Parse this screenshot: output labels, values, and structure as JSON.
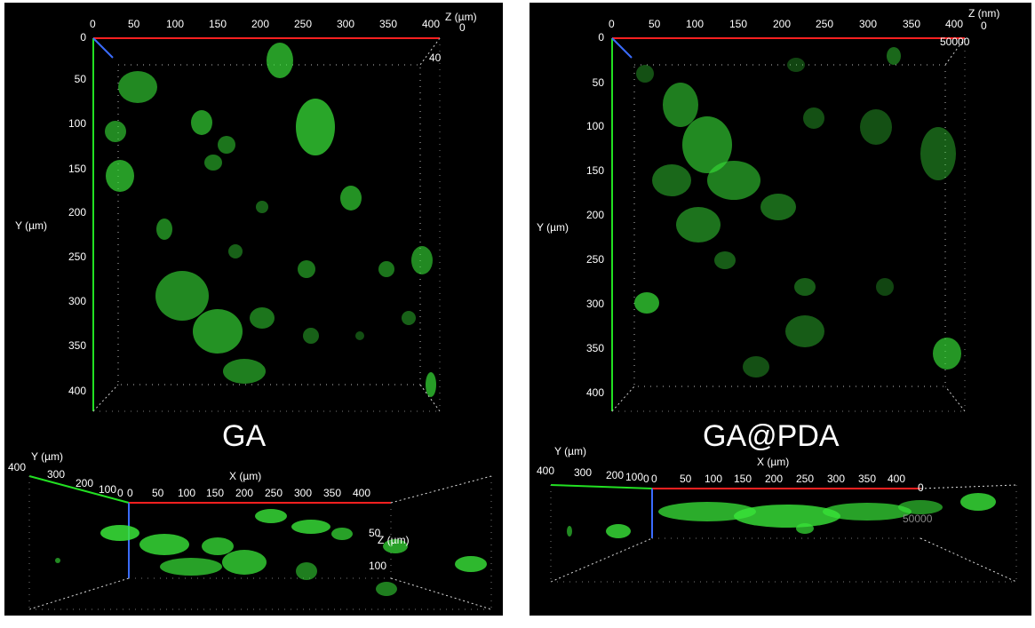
{
  "panels": [
    {
      "caption": "GA",
      "top_view": {
        "x_ticks": [
          "0",
          "50",
          "100",
          "150",
          "200",
          "250",
          "300",
          "350",
          "400"
        ],
        "y_ticks": [
          "0",
          "50",
          "100",
          "150",
          "200",
          "250",
          "300",
          "350",
          "400"
        ],
        "y_label": "Y (µm)",
        "z_label": "Z (µm)",
        "z_ticks": [
          "0",
          "40"
        ]
      },
      "side_view": {
        "y_label": "Y (µm)",
        "y_ticks": [
          "400",
          "300",
          "200",
          "100",
          "0"
        ],
        "x_label": "X (µm)",
        "x_ticks": [
          "0",
          "50",
          "100",
          "150",
          "200",
          "250",
          "300",
          "350",
          "400"
        ],
        "z_label": "Z (µm)",
        "z_ticks": [
          "50",
          "100"
        ]
      }
    },
    {
      "caption": "GA@PDA",
      "top_view": {
        "x_ticks": [
          "0",
          "50",
          "100",
          "150",
          "200",
          "250",
          "300",
          "350",
          "400"
        ],
        "y_ticks": [
          "0",
          "50",
          "100",
          "150",
          "200",
          "250",
          "300",
          "350",
          "400"
        ],
        "y_label": "Y (µm)",
        "z_label": "Z (nm)",
        "z_ticks": [
          "0",
          "50000"
        ]
      },
      "side_view": {
        "y_label": "Y (µm)",
        "y_ticks": [
          "400",
          "300",
          "200",
          "100",
          "0"
        ],
        "x_label": "X (µm)",
        "x_ticks": [
          "0",
          "50",
          "100",
          "150",
          "200",
          "250",
          "300",
          "350",
          "400"
        ],
        "z_ticks": [
          "0",
          "50000"
        ]
      }
    }
  ],
  "colors": {
    "x_axis": "#ff2020",
    "y_axis": "#22e022",
    "z_axis": "#3a6cff",
    "fluorescence": "#39e639",
    "background": "#000000"
  }
}
